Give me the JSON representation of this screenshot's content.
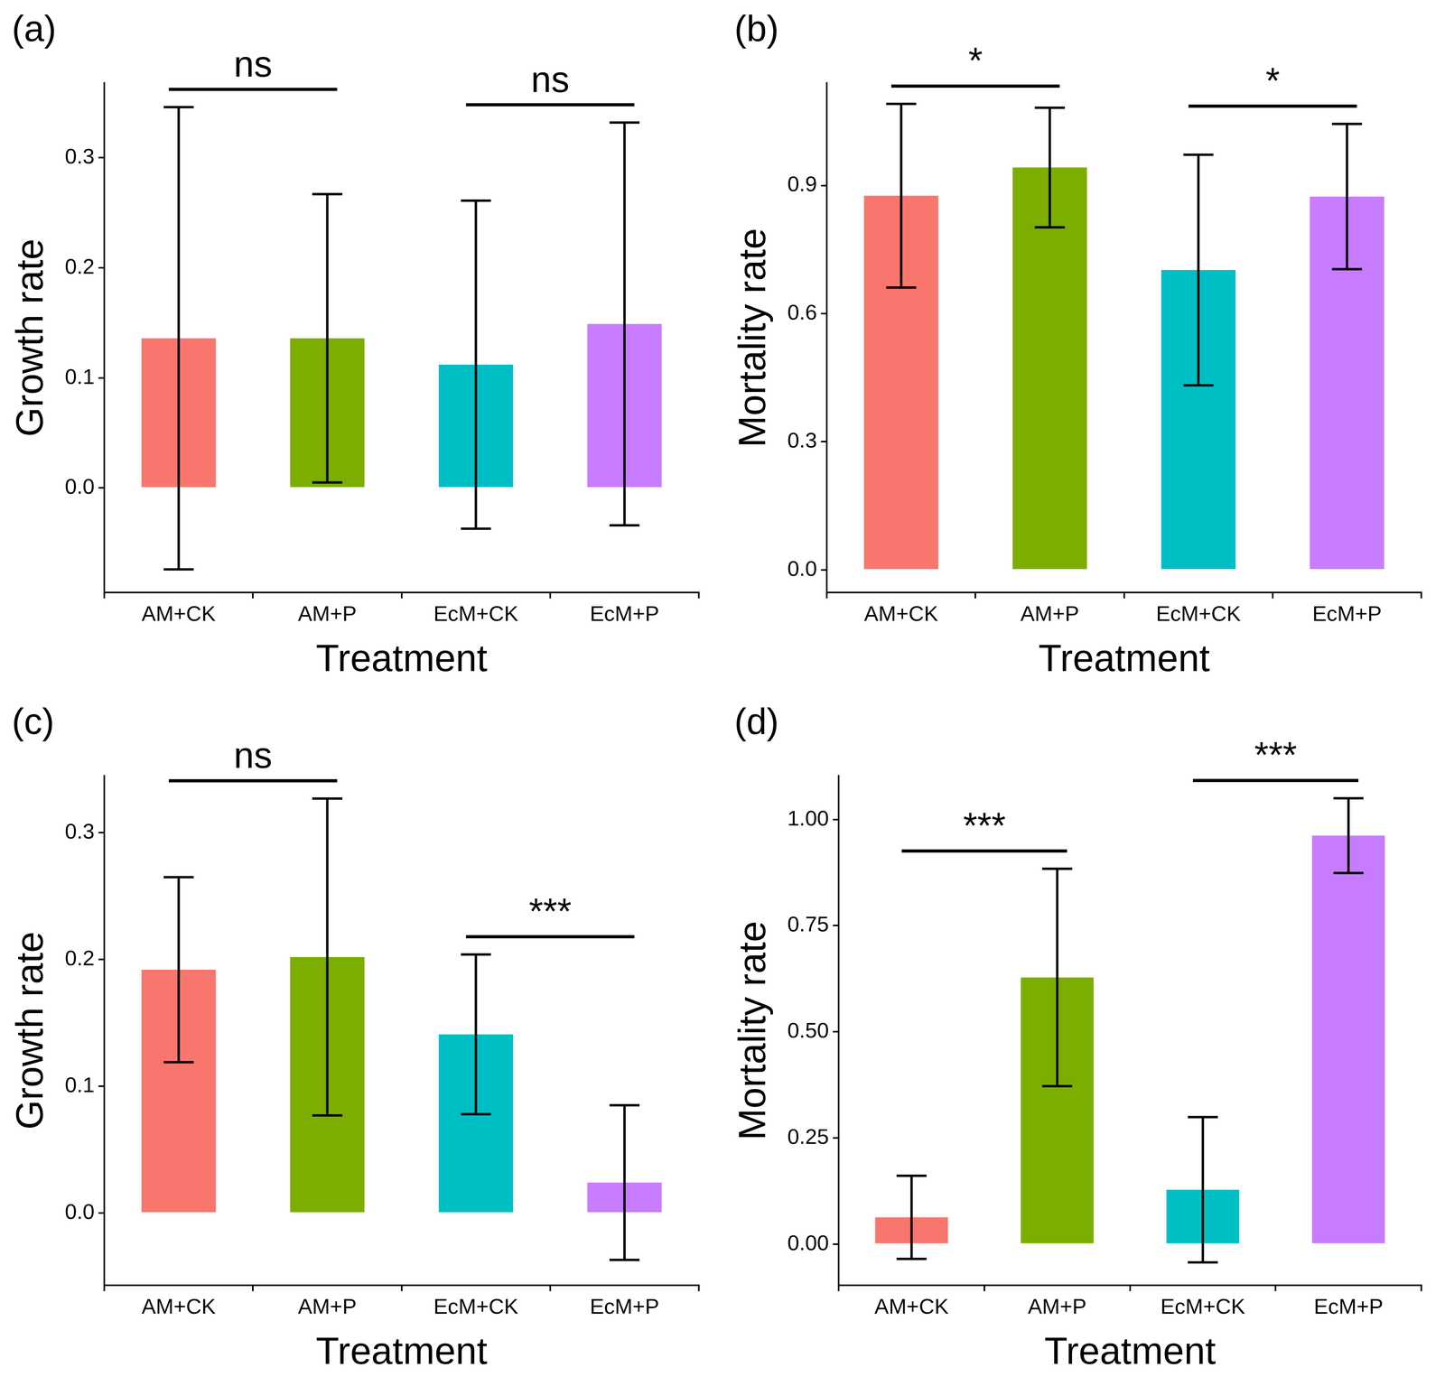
{
  "chart_data": [
    {
      "panel_label": "(a)",
      "type": "bar",
      "x_label": "Treatment",
      "y_label": "Growth rate",
      "categories": [
        "AM+CK",
        "AM+P",
        "EcM+CK",
        "EcM+P"
      ],
      "values": [
        0.136,
        0.136,
        0.112,
        0.149
      ],
      "errors": [
        0.21,
        0.131,
        0.149,
        0.183
      ],
      "colors": [
        "#F8766D",
        "#7CAE00",
        "#00BFC4",
        "#C77CFF"
      ],
      "ylim": [
        -0.095,
        0.368
      ],
      "yticks": [
        {
          "value": 0,
          "label": "0.0"
        },
        0.1,
        0.2,
        0.3
      ],
      "comparisons": [
        {
          "pair": [
            "AM+CK",
            "AM+P"
          ],
          "label": "ns"
        },
        {
          "pair": [
            "EcM+CK",
            "EcM+P"
          ],
          "label": "ns"
        }
      ]
    },
    {
      "panel_label": "(b)",
      "type": "bar",
      "x_label": "Treatment",
      "y_label": "Mortality rate",
      "categories": [
        "AM+CK",
        "AM+P",
        "EcM+CK",
        "EcM+P"
      ],
      "values": [
        0.876,
        0.942,
        0.702,
        0.874
      ],
      "errors": [
        0.215,
        0.14,
        0.27,
        0.17
      ],
      "colors": [
        "#F8766D",
        "#7CAE00",
        "#00BFC4",
        "#C77CFF"
      ],
      "ylim": [
        -0.053,
        1.14
      ],
      "yticks": [
        {
          "value": 0,
          "label": "0.0"
        },
        0.3,
        0.6,
        0.9
      ],
      "comparisons": [
        {
          "pair": [
            "AM+CK",
            "AM+P"
          ],
          "label": "*"
        },
        {
          "pair": [
            "EcM+CK",
            "EcM+P"
          ],
          "label": "*"
        }
      ]
    },
    {
      "panel_label": "(c)",
      "type": "bar",
      "x_label": "Treatment",
      "y_label": "Growth rate",
      "categories": [
        "AM+CK",
        "AM+P",
        "EcM+CK",
        "EcM+P"
      ],
      "values": [
        0.192,
        0.202,
        0.141,
        0.024
      ],
      "errors": [
        0.073,
        0.125,
        0.063,
        0.061
      ],
      "colors": [
        "#F8766D",
        "#7CAE00",
        "#00BFC4",
        "#C77CFF"
      ],
      "ylim": [
        -0.057,
        0.345
      ],
      "yticks": [
        {
          "value": 0,
          "label": "0.0"
        },
        0.1,
        0.2,
        0.3
      ],
      "comparisons": [
        {
          "pair": [
            "AM+CK",
            "AM+P"
          ],
          "label": "ns"
        },
        {
          "pair": [
            "EcM+CK",
            "EcM+P"
          ],
          "label": "***"
        }
      ]
    },
    {
      "panel_label": "(d)",
      "type": "bar",
      "x_label": "Treatment",
      "y_label": "Mortality rate",
      "categories": [
        "AM+CK",
        "AM+P",
        "EcM+CK",
        "EcM+P"
      ],
      "values": [
        0.063,
        0.628,
        0.128,
        0.962
      ],
      "errors": [
        0.098,
        0.256,
        0.171,
        0.088
      ],
      "colors": [
        "#F8766D",
        "#7CAE00",
        "#00BFC4",
        "#C77CFF"
      ],
      "ylim": [
        -0.097,
        1.103
      ],
      "yticks": [
        {
          "value": 0,
          "label": "0.00"
        },
        0.25,
        {
          "value": 0.5,
          "label": "0.50"
        },
        0.75,
        {
          "value": 1,
          "label": "1.00"
        }
      ],
      "comparisons": [
        {
          "pair": [
            "AM+CK",
            "AM+P"
          ],
          "label": "***"
        },
        {
          "pair": [
            "EcM+CK",
            "EcM+P"
          ],
          "label": "***"
        }
      ]
    }
  ]
}
